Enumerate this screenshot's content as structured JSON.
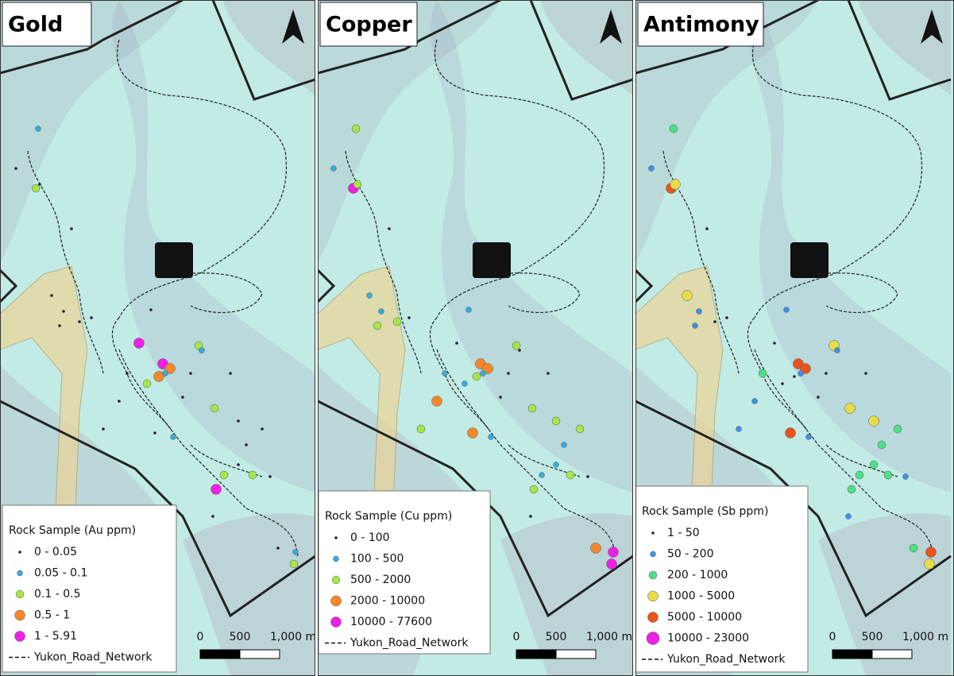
{
  "panels": [
    {
      "title": "Gold",
      "legend": {
        "title": "Rock Sample (Au ppm)",
        "items": [
          {
            "label": "0 - 0.05",
            "color": "#2a1a3a"
          },
          {
            "label": "0.05 - 0.1",
            "color": "#33aee0"
          },
          {
            "label": "0.1 - 0.5",
            "color": "#a6e64a"
          },
          {
            "label": "0.5 - 1",
            "color": "#f5872a"
          },
          {
            "label": "1 - 5.91",
            "color": "#f01ee6"
          }
        ],
        "road": "Yukon_Road_Network"
      },
      "scale": [
        "0",
        "500",
        "1,000 m"
      ]
    },
    {
      "title": "Copper",
      "legend": {
        "title": "Rock Sample (Cu ppm)",
        "items": [
          {
            "label": "0 - 100",
            "color": "#2a1a3a"
          },
          {
            "label": "100 - 500",
            "color": "#33aee0"
          },
          {
            "label": "500 - 2000",
            "color": "#a6e64a"
          },
          {
            "label": "2000 - 10000",
            "color": "#f5872a"
          },
          {
            "label": "10000 - 77600",
            "color": "#f01ee6"
          }
        ],
        "road": "Yukon_Road_Network"
      },
      "scale": [
        "0",
        "500",
        "1,000 m"
      ]
    },
    {
      "title": "Antimony",
      "legend": {
        "title": "Rock Sample (Sb ppm)",
        "items": [
          {
            "label": "1 - 50",
            "color": "#2a1a3a"
          },
          {
            "label": "50 - 200",
            "color": "#3d8fe8"
          },
          {
            "label": "200 - 1000",
            "color": "#4de08a"
          },
          {
            "label": "1000 - 5000",
            "color": "#e8dc4a"
          },
          {
            "label": "5000 - 10000",
            "color": "#e8541a"
          },
          {
            "label": "10000 - 23000",
            "color": "#f01ee6"
          }
        ],
        "road": "Yukon_Road_Network"
      },
      "scale": [
        "0",
        "500",
        "1,000 m"
      ]
    }
  ]
}
